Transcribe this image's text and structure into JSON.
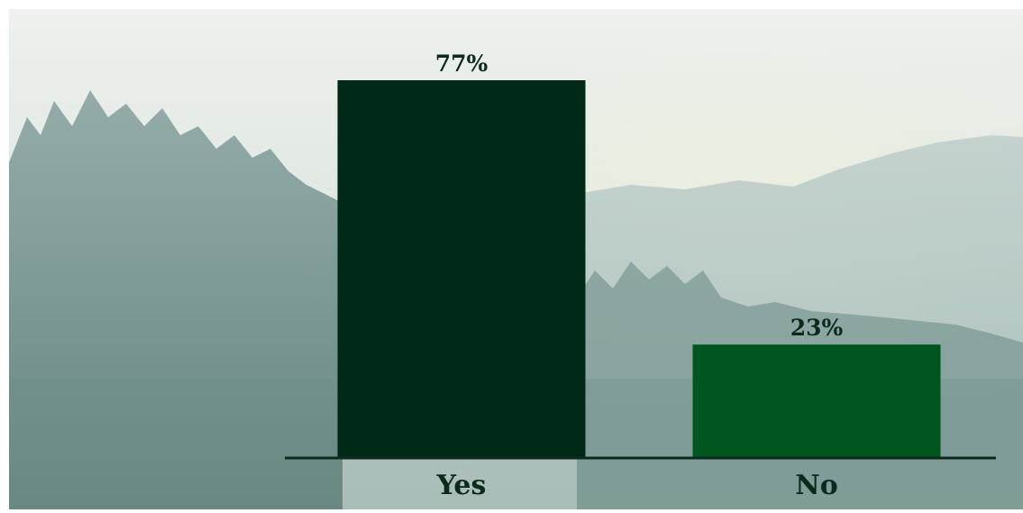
{
  "chart_data": {
    "type": "bar",
    "categories": [
      "Yes",
      "No"
    ],
    "values": [
      77,
      23
    ],
    "data_labels": [
      "77%",
      "23%"
    ],
    "ylim": [
      0,
      77
    ],
    "grid": false,
    "legend": "none",
    "colors": {
      "bars": [
        "#002a17",
        "#00561f"
      ],
      "label_text": "#0b2a1c",
      "baseline": "#0f2a1d"
    }
  }
}
